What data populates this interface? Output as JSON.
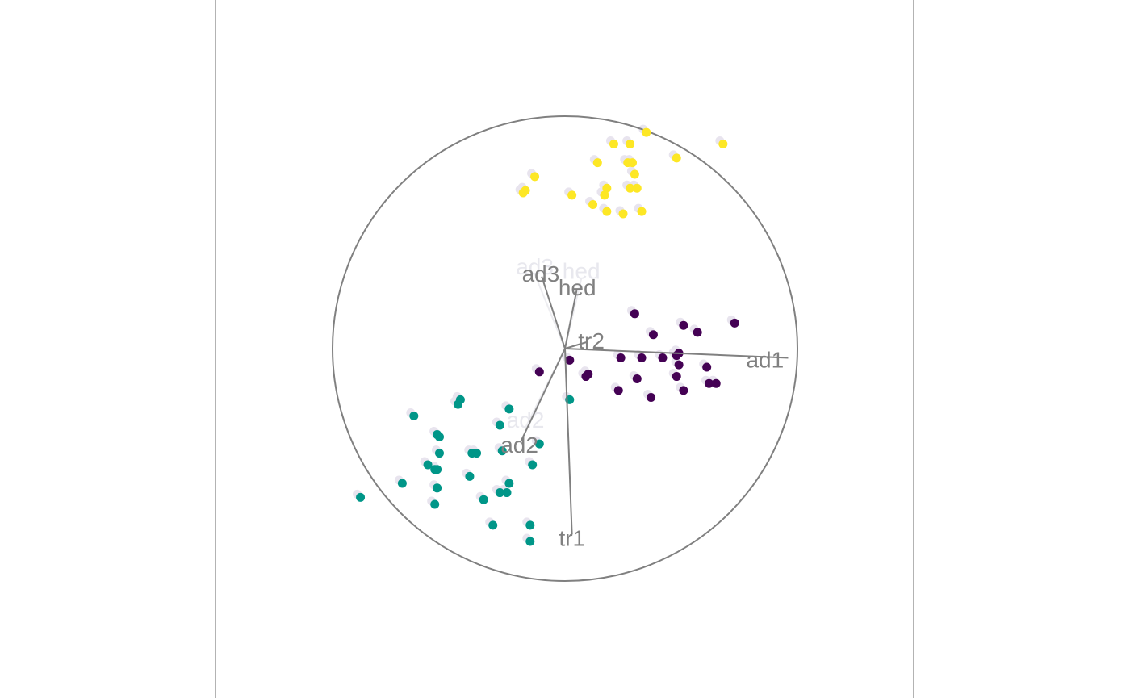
{
  "chart_data": {
    "type": "scatter",
    "title": "",
    "description_axes_present": true,
    "circle_radius": 1,
    "colors": {
      "group1": "#440154",
      "group2": "#009688",
      "group3": "#FDE725",
      "axis": "#808080",
      "shadow": "#e8e4ee"
    },
    "axes": [
      {
        "name": "ad1",
        "x": 0.96,
        "y": -0.04
      },
      {
        "name": "tr1",
        "x": 0.03,
        "y": -0.8
      },
      {
        "name": "ad2",
        "x": -0.19,
        "y": -0.4
      },
      {
        "name": "tr2",
        "x": 0.1,
        "y": 0.03
      },
      {
        "name": "ad3",
        "x": -0.1,
        "y": 0.31
      },
      {
        "name": "hed",
        "x": 0.05,
        "y": 0.25
      }
    ],
    "ghost_axes": [
      {
        "name": "ad3",
        "x": -0.13,
        "y": 0.32
      },
      {
        "name": "hed",
        "x": 0.07,
        "y": 0.3
      },
      {
        "name": "ad2",
        "x": -0.17,
        "y": -0.34
      }
    ],
    "series": [
      {
        "color": "#440154",
        "points": [
          [
            0.3,
            0.15
          ],
          [
            0.51,
            0.1
          ],
          [
            0.57,
            0.07
          ],
          [
            0.73,
            0.11
          ],
          [
            0.38,
            0.06
          ],
          [
            0.48,
            -0.03
          ],
          [
            0.33,
            -0.04
          ],
          [
            0.42,
            -0.04
          ],
          [
            0.24,
            -0.04
          ],
          [
            0.02,
            -0.05
          ],
          [
            0.49,
            -0.02
          ],
          [
            0.61,
            -0.08
          ],
          [
            0.49,
            -0.07
          ],
          [
            0.31,
            -0.13
          ],
          [
            0.51,
            -0.18
          ],
          [
            0.62,
            -0.15
          ],
          [
            0.65,
            -0.15
          ],
          [
            0.48,
            -0.12
          ],
          [
            0.09,
            -0.12
          ],
          [
            0.1,
            -0.11
          ],
          [
            0.23,
            -0.18
          ],
          [
            0.37,
            -0.21
          ],
          [
            -0.11,
            -0.1
          ]
        ]
      },
      {
        "color": "#009688",
        "points": [
          [
            0.02,
            -0.22
          ],
          [
            -0.24,
            -0.26
          ],
          [
            -0.45,
            -0.22
          ],
          [
            -0.46,
            -0.24
          ],
          [
            -0.65,
            -0.29
          ],
          [
            -0.28,
            -0.33
          ],
          [
            -0.55,
            -0.37
          ],
          [
            -0.54,
            -0.38
          ],
          [
            -0.11,
            -0.41
          ],
          [
            -0.27,
            -0.44
          ],
          [
            -0.54,
            -0.45
          ],
          [
            -0.4,
            -0.45
          ],
          [
            -0.38,
            -0.45
          ],
          [
            -0.14,
            -0.5
          ],
          [
            -0.59,
            -0.5
          ],
          [
            -0.56,
            -0.52
          ],
          [
            -0.55,
            -0.52
          ],
          [
            -0.41,
            -0.55
          ],
          [
            -0.24,
            -0.58
          ],
          [
            -0.7,
            -0.58
          ],
          [
            -0.55,
            -0.6
          ],
          [
            -0.28,
            -0.62
          ],
          [
            -0.25,
            -0.62
          ],
          [
            -0.88,
            -0.64
          ],
          [
            -0.35,
            -0.65
          ],
          [
            -0.56,
            -0.67
          ],
          [
            -0.31,
            -0.76
          ],
          [
            -0.15,
            -0.76
          ],
          [
            -0.15,
            -0.83
          ]
        ]
      },
      {
        "color": "#FDE725",
        "points": [
          [
            0.35,
            0.93
          ],
          [
            0.21,
            0.88
          ],
          [
            0.28,
            0.88
          ],
          [
            0.68,
            0.88
          ],
          [
            0.48,
            0.82
          ],
          [
            0.14,
            0.8
          ],
          [
            0.27,
            0.8
          ],
          [
            0.29,
            0.8
          ],
          [
            0.3,
            0.75
          ],
          [
            -0.13,
            0.74
          ],
          [
            0.18,
            0.69
          ],
          [
            0.28,
            0.69
          ],
          [
            0.31,
            0.69
          ],
          [
            -0.17,
            0.68
          ],
          [
            -0.18,
            0.67
          ],
          [
            0.17,
            0.66
          ],
          [
            0.03,
            0.66
          ],
          [
            0.12,
            0.62
          ],
          [
            0.18,
            0.59
          ],
          [
            0.33,
            0.59
          ],
          [
            0.25,
            0.58
          ]
        ]
      }
    ]
  }
}
